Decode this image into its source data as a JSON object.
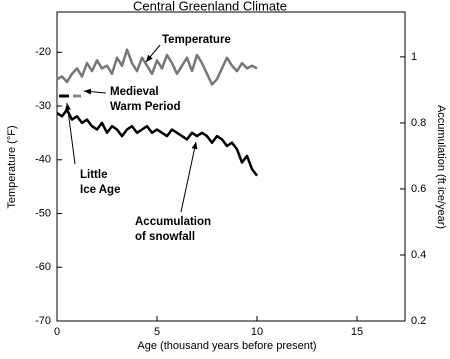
{
  "chart_data": {
    "type": "line",
    "title": "Central Greenland Climate",
    "x_label": "Age (thousand years before present)",
    "y_label": "Temperature (°F)",
    "y2_label": "Accumulation (ft ice/year)",
    "x": [
      0,
      0.25,
      0.5,
      0.75,
      1,
      1.25,
      1.5,
      1.75,
      2,
      2.25,
      2.5,
      2.75,
      3,
      3.25,
      3.5,
      3.75,
      4,
      4.25,
      4.5,
      4.75,
      5,
      5.25,
      5.5,
      5.75,
      6,
      6.25,
      6.5,
      6.75,
      7,
      7.25,
      7.5,
      7.75,
      8,
      8.25,
      8.5,
      8.75,
      9,
      9.25,
      9.5,
      9.75,
      10
    ],
    "series": [
      {
        "name": "Temperature",
        "color": "#777777",
        "values": [
          -25,
          -24.5,
          -25.5,
          -24,
          -23,
          -24.5,
          -22,
          -23.5,
          -21.5,
          -23,
          -22.5,
          -24,
          -21,
          -22.5,
          -19.5,
          -22,
          -23.5,
          -21,
          -22.5,
          -24,
          -21.5,
          -23,
          -20.5,
          -22,
          -24,
          -22.5,
          -21,
          -23.5,
          -20.5,
          -22,
          -24,
          -26,
          -25,
          -23,
          -21,
          -22.5,
          -23.5,
          -22,
          -23,
          -22.5,
          -23
        ]
      },
      {
        "name": "Accumulation of snowfall",
        "color": "#000000",
        "axis": "y2",
        "values": [
          0.83,
          0.82,
          0.84,
          0.81,
          0.82,
          0.8,
          0.81,
          0.79,
          0.78,
          0.8,
          0.77,
          0.79,
          0.78,
          0.76,
          0.78,
          0.79,
          0.77,
          0.78,
          0.79,
          0.77,
          0.78,
          0.77,
          0.76,
          0.78,
          0.77,
          0.76,
          0.75,
          0.77,
          0.76,
          0.77,
          0.76,
          0.74,
          0.76,
          0.75,
          0.73,
          0.74,
          0.72,
          0.68,
          0.7,
          0.66,
          0.64
        ]
      }
    ],
    "annotations": [
      {
        "lines": [
          "Temperature"
        ]
      },
      {
        "lines": [
          "Medieval",
          "Warm Period"
        ]
      },
      {
        "lines": [
          "Little",
          "Ice Age"
        ]
      },
      {
        "lines": [
          "Accumulation",
          "of snowfall"
        ]
      }
    ],
    "periods": [
      {
        "start": 0.1,
        "end": 0.6,
        "color": "#000000"
      },
      {
        "start": 0.8,
        "end": 1.2,
        "color": "#888888"
      }
    ],
    "xlim": [
      0,
      17.4
    ],
    "xticks": [
      0,
      5,
      10,
      15
    ],
    "ylim": [
      -70,
      -12.5
    ],
    "yticks": [
      -70,
      -60,
      -50,
      -40,
      -30,
      -20
    ],
    "y2lim": [
      0.2,
      1.136
    ],
    "y2ticks": [
      0.2,
      0.4,
      0.6,
      0.8,
      1.0
    ]
  }
}
